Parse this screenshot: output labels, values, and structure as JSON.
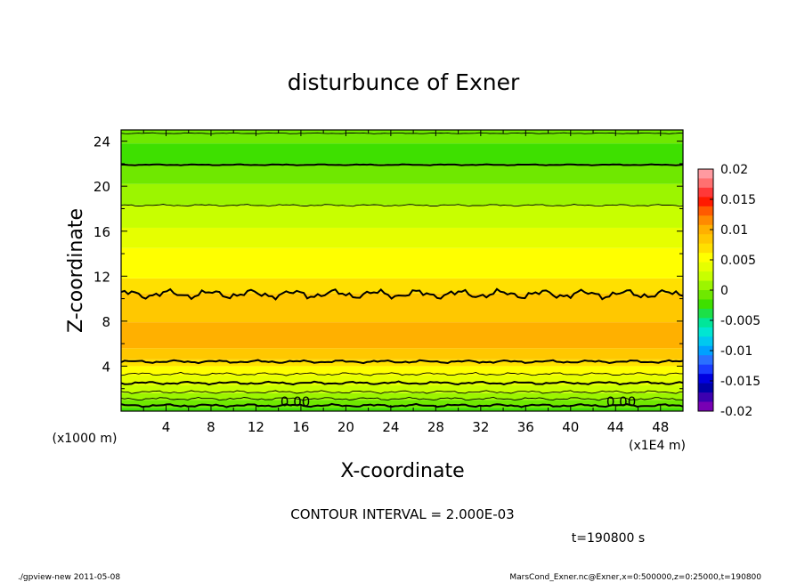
{
  "chart_data": {
    "type": "heatmap",
    "title": "disturbunce of Exner",
    "xlabel": "X-coordinate",
    "ylabel": "Z-coordinate",
    "x_unit": "(x1E4 m)",
    "y_unit": "(x1000 m)",
    "xlim": [
      0,
      50
    ],
    "ylim": [
      0,
      25
    ],
    "x_ticks": [
      "4",
      "8",
      "12",
      "16",
      "20",
      "24",
      "28",
      "32",
      "36",
      "40",
      "44",
      "48"
    ],
    "y_ticks": [
      "4",
      "8",
      "12",
      "16",
      "20",
      "24"
    ],
    "x_tick_values": [
      4,
      8,
      12,
      16,
      20,
      24,
      28,
      32,
      36,
      40,
      44,
      48
    ],
    "y_tick_values": [
      4,
      8,
      12,
      16,
      20,
      24
    ],
    "contour_interval_text": "CONTOUR INTERVAL = 2.000E-03",
    "time_text": "t=190800 s",
    "contour_labels": [
      {
        "text": "0.00",
        "x": 15.5,
        "z": 0.6
      },
      {
        "text": "0.00",
        "x": 44.5,
        "z": 0.6
      }
    ],
    "colorbar": {
      "labels": [
        "0.02",
        "0.015",
        "0.01",
        "0.005",
        "0",
        "-0.005",
        "-0.01",
        "-0.015",
        "-0.02"
      ],
      "levels": [
        0.02,
        0.015,
        0.01,
        0.005,
        0,
        -0.005,
        -0.01,
        -0.015,
        -0.02
      ],
      "colors": [
        "#ff9aa0",
        "#ff7070",
        "#ff3838",
        "#ff1a00",
        "#ff5a00",
        "#ff8a00",
        "#ffb000",
        "#ffc800",
        "#ffe000",
        "#ffff00",
        "#e6ff00",
        "#c8ff00",
        "#9cf500",
        "#6fe800",
        "#3ee000",
        "#1ce048",
        "#00e69a",
        "#00e6d2",
        "#00c8f0",
        "#00a0ff",
        "#2a70ff",
        "#1a3cff",
        "#0000e0",
        "#0000a8",
        "#3c00b0",
        "#7800b4"
      ],
      "zero_index": 15
    },
    "bands": [
      {
        "z0": 0,
        "z1": 0.3,
        "color": "#3ee000"
      },
      {
        "z0": 0.3,
        "z1": 1.0,
        "color": "#6fe800"
      },
      {
        "z0": 1.0,
        "z1": 1.6,
        "color": "#9cf500"
      },
      {
        "z0": 1.6,
        "z1": 2.3,
        "color": "#c8ff00"
      },
      {
        "z0": 2.3,
        "z1": 3.2,
        "color": "#e6ff00"
      },
      {
        "z0": 3.2,
        "z1": 4.0,
        "color": "#ffff00"
      },
      {
        "z0": 4.0,
        "z1": 4.6,
        "color": "#ffe000"
      },
      {
        "z0": 4.6,
        "z1": 5.6,
        "color": "#ffc800"
      },
      {
        "z0": 5.6,
        "z1": 7.9,
        "color": "#ffb000"
      },
      {
        "z0": 7.9,
        "z1": 10.5,
        "color": "#ffc800"
      },
      {
        "z0": 10.5,
        "z1": 11.8,
        "color": "#ffe000"
      },
      {
        "z0": 11.8,
        "z1": 14.5,
        "color": "#ffff00"
      },
      {
        "z0": 14.5,
        "z1": 16.3,
        "color": "#e6ff00"
      },
      {
        "z0": 16.3,
        "z1": 18.3,
        "color": "#c8ff00"
      },
      {
        "z0": 18.3,
        "z1": 20.2,
        "color": "#9cf500"
      },
      {
        "z0": 20.2,
        "z1": 22.0,
        "color": "#6fe800"
      },
      {
        "z0": 22.0,
        "z1": 23.8,
        "color": "#3ee000"
      },
      {
        "z0": 23.8,
        "z1": 25.0,
        "color": "#6fe800"
      }
    ],
    "contours": [
      {
        "z": 0.5,
        "bold": true,
        "wiggle": 0.15
      },
      {
        "z": 1.1,
        "bold": false,
        "wiggle": 0.15
      },
      {
        "z": 1.7,
        "bold": false,
        "wiggle": 0.15
      },
      {
        "z": 2.5,
        "bold": true,
        "wiggle": 0.15
      },
      {
        "z": 3.3,
        "bold": false,
        "wiggle": 0.15
      },
      {
        "z": 4.4,
        "bold": true,
        "wiggle": 0.15
      },
      {
        "z": 10.4,
        "bold": true,
        "wiggle": 0.5
      },
      {
        "z": 18.3,
        "bold": false,
        "wiggle": 0.1
      },
      {
        "z": 21.9,
        "bold": true,
        "wiggle": 0.05
      },
      {
        "z": 24.7,
        "bold": false,
        "wiggle": 0.05
      }
    ]
  },
  "footer": {
    "left": "./gpview-new   2011-05-08",
    "right": "MarsCond_Exner.nc@Exner,x=0:500000,z=0:25000,t=190800"
  }
}
